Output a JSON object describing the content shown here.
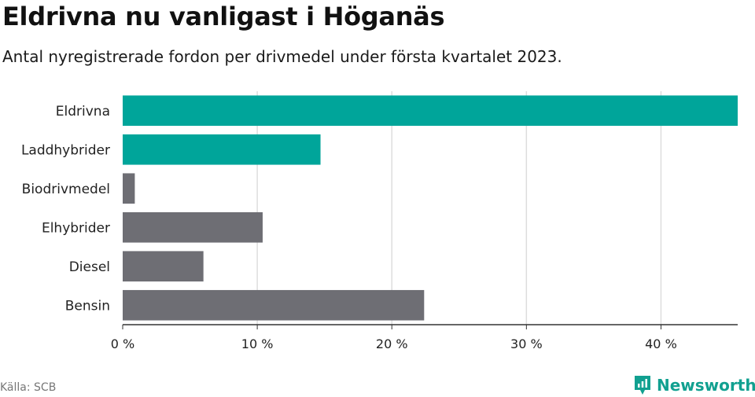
{
  "header": {
    "title": "Eldrivna nu vanligast i Höganäs",
    "subtitle": "Antal nyregistrerade fordon per drivmedel under första kvartalet 2023."
  },
  "footer": {
    "source": "Källa: SCB",
    "brand": "Newsworthy"
  },
  "colors": {
    "highlight": "#00a59a",
    "default": "#6e6e74",
    "grid": "#dddddd",
    "axis": "#333333"
  },
  "chart_data": {
    "type": "bar",
    "orientation": "horizontal",
    "categories": [
      "Eldrivna",
      "Laddhybrider",
      "Biodrivmedel",
      "Elhybrider",
      "Diesel",
      "Bensin"
    ],
    "values": [
      45.7,
      14.7,
      0.9,
      10.4,
      6.0,
      22.4
    ],
    "highlighted": [
      "Eldrivna",
      "Laddhybrider"
    ],
    "xlim": [
      0,
      45.7
    ],
    "xticks": [
      0,
      10,
      20,
      30,
      40
    ],
    "xtick_labels": [
      "0 %",
      "10 %",
      "20 %",
      "30 %",
      "40 %"
    ],
    "grid": true
  }
}
